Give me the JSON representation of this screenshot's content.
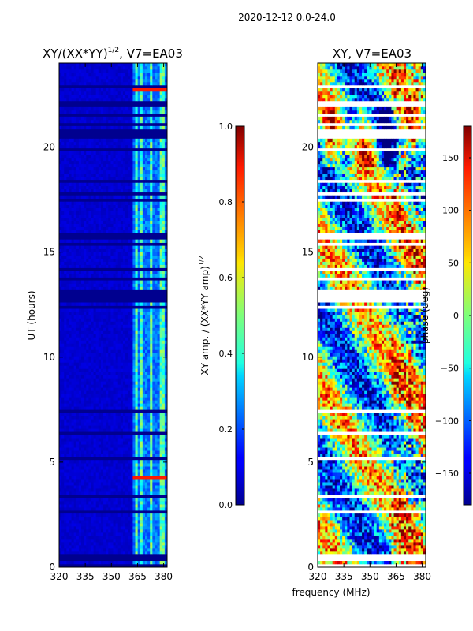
{
  "figure": {
    "suptitle": "2020-12-12 0.0-24.0",
    "xlabel": "frequency (MHz)"
  },
  "chart_data": [
    {
      "type": "heatmap",
      "title": "XY/(XX*YY)",
      "title_power": "1/2",
      "title_suffix": ", V7=EA03",
      "xlabel": "",
      "ylabel": "UT (hours)",
      "xlim": [
        320,
        382
      ],
      "ylim": [
        0,
        24
      ],
      "xticks": [
        320,
        335,
        350,
        365,
        380
      ],
      "yticks": [
        0,
        5,
        10,
        15,
        20
      ],
      "colorbar": {
        "label": "XY amp. / (XX*YY amp)",
        "label_power": "1/2",
        "range": [
          0.0,
          1.0
        ],
        "ticks": [
          "0.0",
          "0.2",
          "0.4",
          "0.6",
          "0.8",
          "1.0"
        ],
        "tick_values": [
          0.0,
          0.2,
          0.4,
          0.6,
          0.8,
          1.0
        ],
        "colormap": "jet"
      }
    },
    {
      "type": "heatmap",
      "title": "XY, V7=EA03",
      "xlabel": "frequency (MHz)",
      "ylabel": "",
      "xlim": [
        320,
        382
      ],
      "ylim": [
        0,
        24
      ],
      "xticks": [
        320,
        335,
        350,
        365,
        380
      ],
      "yticks": [
        0,
        5,
        10,
        15,
        20
      ],
      "colorbar": {
        "label": "phase (deg)",
        "range": [
          -180,
          180
        ],
        "ticks": [
          "−150",
          "−100",
          "−50",
          "0",
          "50",
          "100",
          "150"
        ],
        "tick_values": [
          -150,
          -100,
          -50,
          0,
          50,
          100,
          150
        ],
        "colormap": "jet"
      }
    }
  ]
}
